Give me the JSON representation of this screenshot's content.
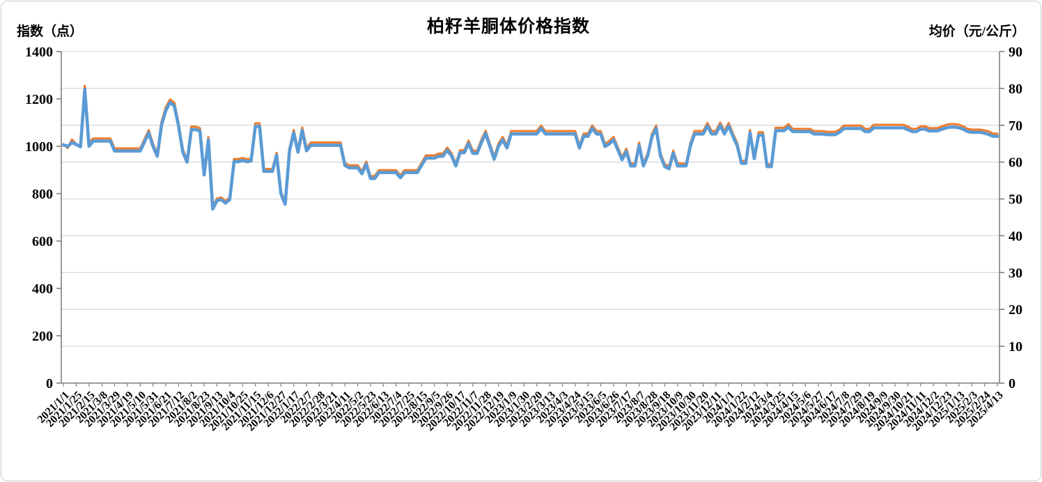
{
  "title": "柏籽羊胴体价格指数",
  "left_axis_title": "指数（点）",
  "right_axis_title": "均价（元/公斤）",
  "chart_data": {
    "type": "line",
    "title": "柏籽羊胴体价格指数",
    "grid": "horizontal",
    "legend": "none",
    "colors": {
      "index_line": "#5B9BD5",
      "price_line": "#ED7D31",
      "gridline": "#D9D9D9",
      "axis": "#7F7F7F",
      "text": "#000000"
    },
    "left_axis": {
      "label": "指数（点）",
      "min": 0,
      "max": 1400,
      "ticks": [
        0,
        200,
        400,
        600,
        800,
        1000,
        1200,
        1400
      ]
    },
    "right_axis": {
      "label": "均价（元/公斤）",
      "min": 0,
      "max": 90,
      "ticks": [
        0,
        10,
        20,
        30,
        40,
        50,
        60,
        70,
        80,
        90
      ]
    },
    "x_label_every_n_points": 3,
    "x_labels": [
      "2021/1/1",
      "2021/1/25",
      "2021/2/15",
      "2021/3/8",
      "2021/3/29",
      "2021/4/19",
      "2021/5/10",
      "2021/5/31",
      "2021/6/21",
      "2021/7/12",
      "2021/8/2",
      "2021/8/23",
      "2021/9/13",
      "2021/10/4",
      "2021/10/25",
      "2021/11/15",
      "2021/12/6",
      "2021/12/27",
      "2022/1/17",
      "2022/2/7",
      "2022/2/28",
      "2022/3/21",
      "2022/4/11",
      "2022/5/2",
      "2022/5/23",
      "2022/6/13",
      "2022/7/4",
      "2022/7/25",
      "2022/8/15",
      "2022/9/5",
      "2022/9/26",
      "2022/10/17",
      "2022/11/7",
      "2022/11/28",
      "2022/12/19",
      "2023/1/9",
      "2023/1/30",
      "2023/2/20",
      "2023/3/13",
      "2023/4/3",
      "2023/4/24",
      "2023/5/15",
      "2023/6/5",
      "2023/6/26",
      "2023/7/17",
      "2023/8/7",
      "2023/8/28",
      "2023/9/18",
      "2023/10/9",
      "2023/10/30",
      "2023/11/20",
      "2023/12/11",
      "2024/1/1",
      "2024/1/22",
      "2024/2/12",
      "2024/3/4",
      "2024/3/25",
      "2024/4/15",
      "2024/5/6",
      "2024/5/27",
      "2024/6/17",
      "2024/7/8",
      "2024/7/29",
      "2024/8/19",
      "2024/9/9",
      "2024/9/30",
      "2024/10/21",
      "2024/11/11",
      "2024/12/2",
      "2024/12/23",
      "2025/1/13",
      "2025/2/3",
      "2025/2/24",
      "2025/4/13"
    ],
    "series": [
      {
        "name": "均价（元/公斤）",
        "axis": "right",
        "color": "#ED7D31",
        "values": [
          64.9,
          63.8,
          66.1,
          64.9,
          64.1,
          80.7,
          65.3,
          66.4,
          66.4,
          66.4,
          66.4,
          66.4,
          63.7,
          63.7,
          63.7,
          63.7,
          63.7,
          63.7,
          63.7,
          66.2,
          68.7,
          65.0,
          62.3,
          70.9,
          74.8,
          77.0,
          76.1,
          70.5,
          63.4,
          60.6,
          69.6,
          69.6,
          69.2,
          57.1,
          66.8,
          47.8,
          50.1,
          50.4,
          49.4,
          50.4,
          60.8,
          60.8,
          61.1,
          60.8,
          61.0,
          70.5,
          70.5,
          58.1,
          58.1,
          58.1,
          62.5,
          52.0,
          49.1,
          63.7,
          68.7,
          63.4,
          69.4,
          63.8,
          65.3,
          65.3,
          65.3,
          65.3,
          65.3,
          65.3,
          65.3,
          65.3,
          59.7,
          59.1,
          59.1,
          59.1,
          57.5,
          60.1,
          56.2,
          56.2,
          57.8,
          57.8,
          57.8,
          57.8,
          57.8,
          56.4,
          57.8,
          57.8,
          57.8,
          57.8,
          59.8,
          61.8,
          61.8,
          61.8,
          62.3,
          62.3,
          63.9,
          62.4,
          59.6,
          63.2,
          63.2,
          65.8,
          63.1,
          63.1,
          66.0,
          68.5,
          65.0,
          61.4,
          65.0,
          66.8,
          64.5,
          68.4,
          68.4,
          68.4,
          68.4,
          68.4,
          68.4,
          68.4,
          69.9,
          68.4,
          68.4,
          68.4,
          68.4,
          68.4,
          68.4,
          68.4,
          68.4,
          64.5,
          67.7,
          67.7,
          69.9,
          68.4,
          68.4,
          64.9,
          65.7,
          66.8,
          64.0,
          61.3,
          63.6,
          59.6,
          59.6,
          65.3,
          59.6,
          62.4,
          67.6,
          69.9,
          62.4,
          59.4,
          58.8,
          63.1,
          59.6,
          59.6,
          59.6,
          65.0,
          68.4,
          68.4,
          68.4,
          70.6,
          68.4,
          68.4,
          70.7,
          68.4,
          70.6,
          67.7,
          65.1,
          60.3,
          60.3,
          68.7,
          61.6,
          68.1,
          68.1,
          59.4,
          59.4,
          69.3,
          69.3,
          69.3,
          70.3,
          69.0,
          69.0,
          69.0,
          69.0,
          69.0,
          68.4,
          68.4,
          68.4,
          68.2,
          68.2,
          68.2,
          68.8,
          69.9,
          69.9,
          69.9,
          69.9,
          69.9,
          69.0,
          69.0,
          70.1,
          70.1,
          70.1,
          70.1,
          70.1,
          70.1,
          70.1,
          70.1,
          69.6,
          69.0,
          69.0,
          69.7,
          69.7,
          69.2,
          69.2,
          69.2,
          69.7,
          70.1,
          70.3,
          70.3,
          70.1,
          69.7,
          69.0,
          68.8,
          68.8,
          68.8,
          68.6,
          68.3,
          67.7,
          67.7
        ]
      },
      {
        "name": "指数（点）",
        "axis": "left",
        "color": "#5B9BD5",
        "values": [
          1005,
          1000,
          1015,
          1008,
          998,
          1240,
          1000,
          1022,
          1022,
          1022,
          1022,
          1022,
          980,
          980,
          980,
          980,
          980,
          980,
          980,
          1018,
          1057,
          1000,
          958,
          1090,
          1150,
          1185,
          1170,
          1085,
          975,
          933,
          1070,
          1070,
          1065,
          879,
          1027,
          735,
          770,
          775,
          760,
          775,
          935,
          935,
          940,
          935,
          938,
          1084,
          1084,
          894,
          894,
          894,
          962,
          800,
          755,
          980,
          1057,
          975,
          1067,
          981,
          1004,
          1004,
          1004,
          1004,
          1004,
          1004,
          1004,
          1004,
          919,
          909,
          909,
          909,
          884,
          924,
          864,
          864,
          889,
          889,
          889,
          889,
          889,
          867,
          889,
          889,
          889,
          889,
          920,
          950,
          950,
          950,
          958,
          958,
          983,
          960,
          917,
          973,
          973,
          1012,
          970,
          970,
          1015,
          1054,
          1000,
          945,
          1000,
          1027,
          993,
          1052,
          1052,
          1052,
          1052,
          1052,
          1052,
          1052,
          1076,
          1052,
          1052,
          1052,
          1052,
          1052,
          1052,
          1052,
          1052,
          993,
          1042,
          1042,
          1076,
          1052,
          1052,
          999,
          1010,
          1027,
          985,
          943,
          978,
          917,
          917,
          1004,
          917,
          960,
          1040,
          1076,
          960,
          914,
          905,
          971,
          917,
          917,
          917,
          1000,
          1052,
          1052,
          1052,
          1086,
          1052,
          1052,
          1088,
          1052,
          1086,
          1042,
          1002,
          928,
          928,
          1057,
          948,
          1047,
          1047,
          914,
          914,
          1066,
          1066,
          1066,
          1081,
          1062,
          1062,
          1062,
          1062,
          1062,
          1052,
          1052,
          1052,
          1049,
          1049,
          1049,
          1059,
          1075,
          1075,
          1075,
          1075,
          1075,
          1062,
          1062,
          1078,
          1078,
          1078,
          1078,
          1078,
          1078,
          1078,
          1078,
          1070,
          1062,
          1062,
          1072,
          1072,
          1065,
          1065,
          1065,
          1072,
          1078,
          1081,
          1081,
          1078,
          1072,
          1062,
          1059,
          1059,
          1059,
          1055,
          1050,
          1042,
          1042
        ]
      }
    ]
  }
}
